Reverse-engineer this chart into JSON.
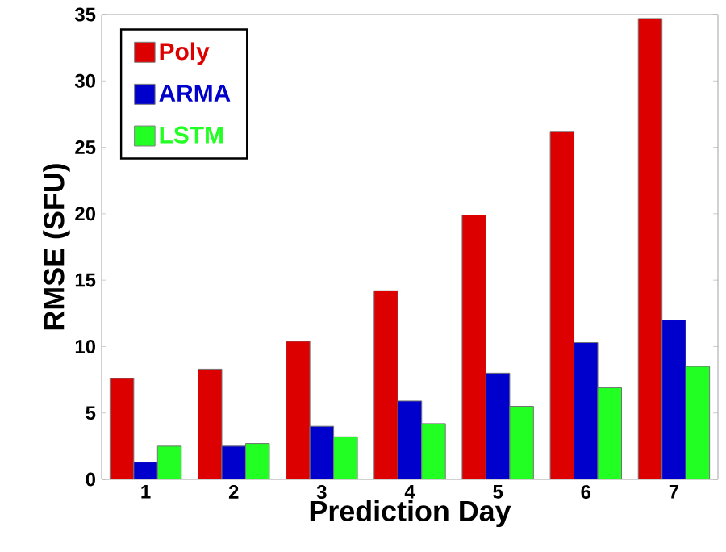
{
  "chart_data": {
    "type": "bar",
    "xlabel": "Prediction Day",
    "ylabel": "RMSE (SFU)",
    "categories": [
      "1",
      "2",
      "3",
      "4",
      "5",
      "6",
      "7"
    ],
    "series": [
      {
        "name": "Poly",
        "color": "#dd0000",
        "values": [
          7.6,
          8.3,
          10.4,
          14.2,
          19.9,
          26.2,
          34.7
        ]
      },
      {
        "name": "ARMA",
        "color": "#0000cc",
        "values": [
          1.3,
          2.5,
          4.0,
          5.9,
          8.0,
          10.3,
          12.0
        ]
      },
      {
        "name": "LSTM",
        "color": "#22ff22",
        "values": [
          2.5,
          2.7,
          3.2,
          4.2,
          5.5,
          6.9,
          8.5
        ]
      }
    ],
    "ylim": [
      0,
      35
    ],
    "yticks": [
      0,
      5,
      10,
      15,
      20,
      25,
      30,
      35
    ],
    "grid": false,
    "legend": "top left"
  }
}
